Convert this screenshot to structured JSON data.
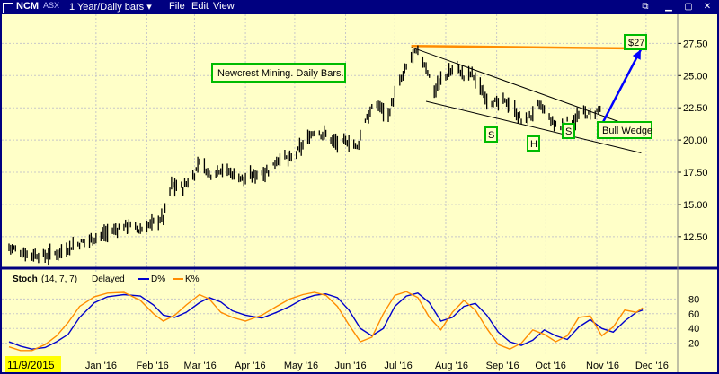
{
  "header": {
    "symbol": "NCM",
    "exchange": "ASX",
    "period": "1 Year/Daily bars",
    "menus": [
      "File",
      "Edit",
      "View"
    ],
    "window_buttons": [
      "minimize",
      "maximize",
      "close"
    ]
  },
  "annotations": {
    "title_box": "Newcrest Mining.  Daily Bars.",
    "target_label": "$27",
    "pattern_label": "Bull Wedge",
    "shoulder_left": "S",
    "head": "H",
    "shoulder_right": "S"
  },
  "colors": {
    "background": "#ffffc8",
    "frame": "#000080",
    "bars": "#000000",
    "resistance": "#ff8c00",
    "target_arrow": "#0000ff",
    "label_border": "#00bb00",
    "stoch_d": "#0000cc",
    "stoch_k": "#ff8c00",
    "start_date_bg": "#ffff00"
  },
  "stoch_legend": {
    "name": "Stoch",
    "params": "(14, 7, 7)",
    "mode": "Delayed",
    "d_label": "D%",
    "k_label": "K%"
  },
  "chart_data": [
    {
      "type": "candlestick",
      "title": "Newcrest Mining.  Daily Bars.",
      "start_date": "11/9/2015",
      "x_ticks": [
        "Jan '16",
        "Feb '16",
        "Mar '16",
        "Apr '16",
        "May '16",
        "Jun '16",
        "Jul '16",
        "Aug '16",
        "Sep '16",
        "Oct '16",
        "Nov '16",
        "Dec '16"
      ],
      "y_ticks": [
        12.5,
        15.0,
        17.5,
        20.0,
        22.5,
        25.0,
        27.5
      ],
      "y_tick_labels": [
        "12.50",
        "15.00",
        "17.50",
        "20.00",
        "22.50",
        "25.00",
        "27.50"
      ],
      "ylim": [
        10.4,
        28.5
      ],
      "grid": true,
      "series": [
        {
          "name": "",
          "points": [
            [
              "2015-11-09",
              11.7
            ],
            [
              "2015-11-19",
              11.2
            ],
            [
              "2015-12-01",
              11.0
            ],
            [
              "2015-12-10",
              11.3
            ],
            [
              "2015-12-18",
              11.8
            ],
            [
              "2016-01-04",
              12.6
            ],
            [
              "2016-01-12",
              13.0
            ],
            [
              "2016-01-20",
              13.4
            ],
            [
              "2016-01-28",
              13.0
            ],
            [
              "2016-02-05",
              13.6
            ],
            [
              "2016-02-11",
              14.0
            ],
            [
              "2016-02-16",
              16.5
            ],
            [
              "2016-02-23",
              16.3
            ],
            [
              "2016-03-01",
              17.3
            ],
            [
              "2016-03-04",
              18.5
            ],
            [
              "2016-03-10",
              17.3
            ],
            [
              "2016-03-17",
              17.8
            ],
            [
              "2016-03-24",
              17.4
            ],
            [
              "2016-04-01",
              16.9
            ],
            [
              "2016-04-08",
              17.4
            ],
            [
              "2016-04-15",
              17.6
            ],
            [
              "2016-04-22",
              18.7
            ],
            [
              "2016-04-29",
              18.5
            ],
            [
              "2016-05-06",
              19.6
            ],
            [
              "2016-05-13",
              20.7
            ],
            [
              "2016-05-20",
              20.4
            ],
            [
              "2016-05-27",
              19.7
            ],
            [
              "2016-06-03",
              19.9
            ],
            [
              "2016-06-08",
              19.4
            ],
            [
              "2016-06-13",
              21.6
            ],
            [
              "2016-06-20",
              22.8
            ],
            [
              "2016-06-27",
              22.0
            ],
            [
              "2016-07-01",
              23.5
            ],
            [
              "2016-07-06",
              25.0
            ],
            [
              "2016-07-11",
              26.5
            ],
            [
              "2016-07-15",
              26.8
            ],
            [
              "2016-07-20",
              25.7
            ],
            [
              "2016-07-25",
              23.8
            ],
            [
              "2016-07-29",
              24.6
            ],
            [
              "2016-08-03",
              25.2
            ],
            [
              "2016-08-08",
              25.7
            ],
            [
              "2016-08-12",
              24.9
            ],
            [
              "2016-08-17",
              25.2
            ],
            [
              "2016-08-22",
              24.0
            ],
            [
              "2016-08-26",
              23.3
            ],
            [
              "2016-09-01",
              22.8
            ],
            [
              "2016-09-07",
              23.0
            ],
            [
              "2016-09-12",
              22.3
            ],
            [
              "2016-09-16",
              21.5
            ],
            [
              "2016-09-21",
              21.7
            ],
            [
              "2016-09-26",
              22.7
            ],
            [
              "2016-09-30",
              22.3
            ],
            [
              "2016-10-05",
              21.3
            ],
            [
              "2016-10-10",
              21.0
            ],
            [
              "2016-10-14",
              21.4
            ],
            [
              "2016-10-19",
              21.6
            ],
            [
              "2016-10-24",
              22.1
            ],
            [
              "2016-10-28",
              21.9
            ],
            [
              "2016-11-02",
              22.3
            ],
            [
              "2016-11-04",
              22.6
            ]
          ]
        }
      ],
      "wedge_upper": [
        [
          "2016-07-11",
          27.2
        ],
        [
          "2016-11-28",
          20.8
        ]
      ],
      "wedge_lower": [
        [
          "2016-07-20",
          23.0
        ],
        [
          "2016-11-28",
          19.0
        ]
      ],
      "resistance": [
        [
          "2016-07-11",
          27.3
        ],
        [
          "2016-12-01",
          27.1
        ]
      ],
      "target_arrow": [
        [
          "2016-11-04",
          21.2
        ],
        [
          "2016-12-01",
          27.0
        ]
      ]
    },
    {
      "type": "line",
      "title": "Stoch",
      "y_ticks": [
        20,
        40,
        60,
        80
      ],
      "ylim": [
        0,
        100
      ],
      "grid": true,
      "series": [
        {
          "name": "D%",
          "points": [
            [
              "2015-11-09",
              22
            ],
            [
              "2015-11-16",
              16
            ],
            [
              "2015-11-23",
              12
            ],
            [
              "2015-12-01",
              14
            ],
            [
              "2015-12-08",
              22
            ],
            [
              "2015-12-15",
              32
            ],
            [
              "2015-12-22",
              55
            ],
            [
              "2015-12-31",
              75
            ],
            [
              "2016-01-08",
              83
            ],
            [
              "2016-01-18",
              86
            ],
            [
              "2016-01-28",
              84
            ],
            [
              "2016-02-05",
              72
            ],
            [
              "2016-02-11",
              58
            ],
            [
              "2016-02-18",
              55
            ],
            [
              "2016-02-25",
              62
            ],
            [
              "2016-03-04",
              75
            ],
            [
              "2016-03-10",
              82
            ],
            [
              "2016-03-17",
              76
            ],
            [
              "2016-03-24",
              64
            ],
            [
              "2016-04-01",
              58
            ],
            [
              "2016-04-11",
              54
            ],
            [
              "2016-04-20",
              62
            ],
            [
              "2016-04-28",
              70
            ],
            [
              "2016-05-06",
              80
            ],
            [
              "2016-05-13",
              85
            ],
            [
              "2016-05-20",
              87
            ],
            [
              "2016-05-27",
              82
            ],
            [
              "2016-06-03",
              65
            ],
            [
              "2016-06-10",
              40
            ],
            [
              "2016-06-17",
              30
            ],
            [
              "2016-06-24",
              40
            ],
            [
              "2016-07-01",
              70
            ],
            [
              "2016-07-08",
              84
            ],
            [
              "2016-07-15",
              88
            ],
            [
              "2016-07-22",
              75
            ],
            [
              "2016-07-29",
              50
            ],
            [
              "2016-08-05",
              55
            ],
            [
              "2016-08-12",
              70
            ],
            [
              "2016-08-19",
              74
            ],
            [
              "2016-08-26",
              58
            ],
            [
              "2016-09-02",
              35
            ],
            [
              "2016-09-09",
              22
            ],
            [
              "2016-09-16",
              17
            ],
            [
              "2016-09-23",
              24
            ],
            [
              "2016-09-30",
              38
            ],
            [
              "2016-10-07",
              30
            ],
            [
              "2016-10-14",
              25
            ],
            [
              "2016-10-21",
              42
            ],
            [
              "2016-10-28",
              52
            ],
            [
              "2016-11-04",
              40
            ],
            [
              "2016-11-11",
              35
            ],
            [
              "2016-11-18",
              50
            ],
            [
              "2016-11-25",
              62
            ],
            [
              "2016-11-29",
              65
            ]
          ]
        },
        {
          "name": "K%",
          "points": [
            [
              "2015-11-09",
              15
            ],
            [
              "2015-11-16",
              10
            ],
            [
              "2015-11-23",
              10
            ],
            [
              "2015-12-01",
              18
            ],
            [
              "2015-12-08",
              30
            ],
            [
              "2015-12-15",
              48
            ],
            [
              "2015-12-22",
              70
            ],
            [
              "2015-12-31",
              83
            ],
            [
              "2016-01-08",
              88
            ],
            [
              "2016-01-18",
              89
            ],
            [
              "2016-01-28",
              78
            ],
            [
              "2016-02-05",
              60
            ],
            [
              "2016-02-11",
              50
            ],
            [
              "2016-02-18",
              58
            ],
            [
              "2016-02-25",
              72
            ],
            [
              "2016-03-04",
              86
            ],
            [
              "2016-03-10",
              80
            ],
            [
              "2016-03-17",
              62
            ],
            [
              "2016-03-24",
              55
            ],
            [
              "2016-04-01",
              50
            ],
            [
              "2016-04-11",
              58
            ],
            [
              "2016-04-20",
              70
            ],
            [
              "2016-04-28",
              80
            ],
            [
              "2016-05-06",
              86
            ],
            [
              "2016-05-13",
              89
            ],
            [
              "2016-05-20",
              85
            ],
            [
              "2016-05-27",
              70
            ],
            [
              "2016-06-03",
              45
            ],
            [
              "2016-06-10",
              22
            ],
            [
              "2016-06-17",
              28
            ],
            [
              "2016-06-24",
              60
            ],
            [
              "2016-07-01",
              85
            ],
            [
              "2016-07-08",
              90
            ],
            [
              "2016-07-15",
              82
            ],
            [
              "2016-07-22",
              55
            ],
            [
              "2016-07-29",
              38
            ],
            [
              "2016-08-05",
              62
            ],
            [
              "2016-08-12",
              78
            ],
            [
              "2016-08-19",
              65
            ],
            [
              "2016-08-26",
              40
            ],
            [
              "2016-09-02",
              18
            ],
            [
              "2016-09-09",
              12
            ],
            [
              "2016-09-16",
              20
            ],
            [
              "2016-09-23",
              38
            ],
            [
              "2016-09-30",
              32
            ],
            [
              "2016-10-07",
              22
            ],
            [
              "2016-10-14",
              30
            ],
            [
              "2016-10-21",
              55
            ],
            [
              "2016-10-28",
              57
            ],
            [
              "2016-11-04",
              30
            ],
            [
              "2016-11-11",
              42
            ],
            [
              "2016-11-18",
              65
            ],
            [
              "2016-11-25",
              62
            ],
            [
              "2016-11-29",
              68
            ]
          ]
        }
      ]
    }
  ]
}
